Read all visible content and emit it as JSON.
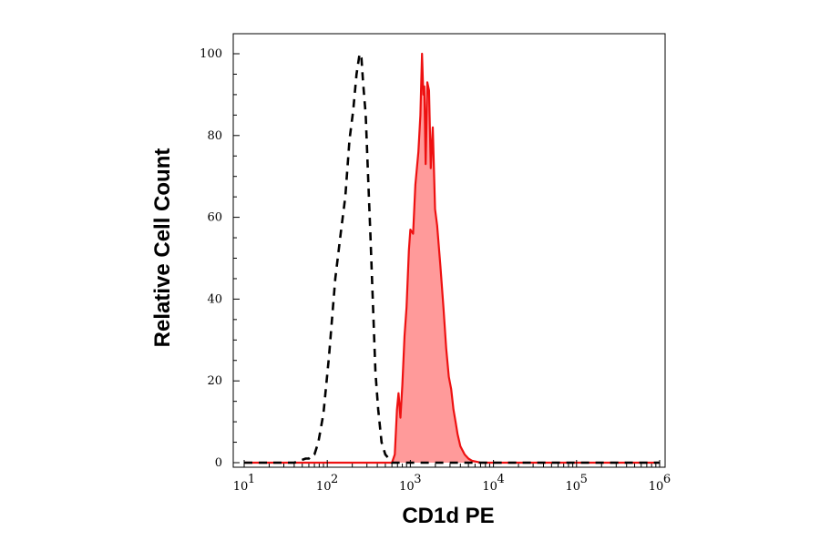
{
  "chart_data": {
    "type": "area",
    "xlabel": "CD1d PE",
    "ylabel": "Relative Cell Count",
    "x_scale": "log",
    "xlim": [
      10,
      1000000
    ],
    "ylim": [
      0,
      100
    ],
    "grid": false,
    "legend": "none",
    "x_ticks": [
      {
        "base": "10",
        "exp": "1",
        "value": 10
      },
      {
        "base": "10",
        "exp": "2",
        "value": 100
      },
      {
        "base": "10",
        "exp": "3",
        "value": 1000
      },
      {
        "base": "10",
        "exp": "4",
        "value": 10000
      },
      {
        "base": "10",
        "exp": "5",
        "value": 100000
      },
      {
        "base": "10",
        "exp": "6",
        "value": 1000000
      }
    ],
    "y_ticks": [
      "0",
      "20",
      "40",
      "60",
      "80",
      "100"
    ],
    "series": [
      {
        "style": "dashed",
        "color": "#000000",
        "fill": "none",
        "x": [
          10,
          40,
          55,
          60,
          66,
          70,
          78,
          90,
          105,
          125,
          145,
          165,
          185,
          205,
          225,
          245,
          258,
          270,
          290,
          310,
          330,
          350,
          380,
          410,
          450,
          500,
          550,
          600,
          1000000
        ],
        "y": [
          0,
          0,
          1,
          1,
          2,
          2,
          5,
          12,
          26,
          45,
          56,
          65,
          79,
          86,
          95,
          100,
          99,
          93,
          85,
          70,
          56,
          42,
          22,
          13,
          5,
          2,
          1,
          0,
          0
        ]
      },
      {
        "style": "solid",
        "color": "#ee1111",
        "fill": "#ff9a9a",
        "x": [
          10,
          600,
          650,
          690,
          720,
          760,
          800,
          850,
          900,
          960,
          1000,
          1080,
          1150,
          1250,
          1320,
          1380,
          1430,
          1470,
          1530,
          1600,
          1680,
          1760,
          1860,
          1980,
          2100,
          2300,
          2500,
          2700,
          2900,
          3100,
          3300,
          3500,
          3700,
          4000,
          4500,
          5000,
          5500,
          7000,
          1000000
        ],
        "y": [
          0,
          0,
          2,
          13,
          17,
          11,
          19,
          31,
          38,
          52,
          57,
          56,
          68,
          76,
          85,
          100,
          90,
          92,
          73,
          93,
          91,
          72,
          82,
          62,
          58,
          48,
          38,
          28,
          21,
          18,
          13,
          10,
          7,
          4,
          2,
          1,
          0.5,
          0,
          0
        ]
      }
    ]
  }
}
